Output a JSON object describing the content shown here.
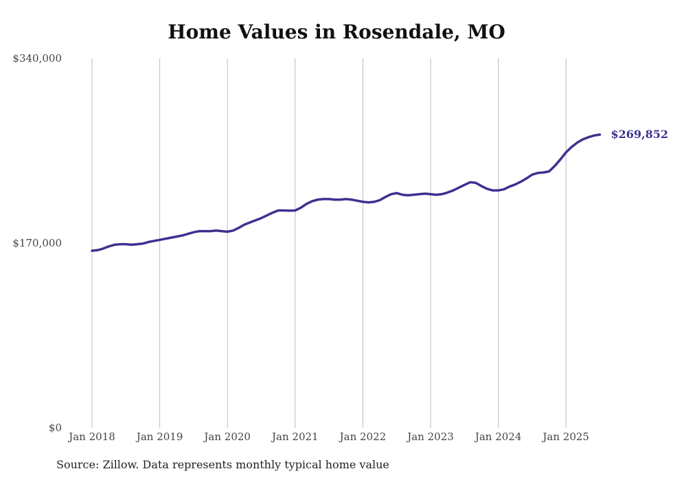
{
  "chart_data": {
    "type": "line",
    "title": "Home Values in Rosendale, MO",
    "source_note": "Source: Zillow. Data represents monthly typical home value",
    "ylim": [
      0,
      340000
    ],
    "y_ticks": [
      "$0",
      "$170,000",
      "$340,000"
    ],
    "y_tick_values": [
      0,
      170000,
      340000
    ],
    "x_ticks": [
      "Jan 2018",
      "Jan 2019",
      "Jan 2020",
      "Jan 2021",
      "Jan 2022",
      "Jan 2023",
      "Jan 2024",
      "Jan 2025"
    ],
    "grid": "vertical",
    "end_label": "$269,852",
    "line_color": "#3b3191",
    "series": [
      {
        "points": [
          [
            "2018-01",
            163000
          ],
          [
            "2018-02",
            163500
          ],
          [
            "2018-03",
            165000
          ],
          [
            "2018-04",
            167000
          ],
          [
            "2018-05",
            168500
          ],
          [
            "2018-06",
            169000
          ],
          [
            "2018-07",
            169000
          ],
          [
            "2018-08",
            168500
          ],
          [
            "2018-09",
            169000
          ],
          [
            "2018-10",
            169500
          ],
          [
            "2018-11",
            171000
          ],
          [
            "2018-12",
            172000
          ],
          [
            "2019-01",
            173000
          ],
          [
            "2019-02",
            174000
          ],
          [
            "2019-03",
            175000
          ],
          [
            "2019-04",
            176000
          ],
          [
            "2019-05",
            177000
          ],
          [
            "2019-06",
            178500
          ],
          [
            "2019-07",
            180000
          ],
          [
            "2019-08",
            181000
          ],
          [
            "2019-09",
            181000
          ],
          [
            "2019-10",
            181000
          ],
          [
            "2019-11",
            181500
          ],
          [
            "2019-12",
            181000
          ],
          [
            "2020-01",
            180500
          ],
          [
            "2020-02",
            181500
          ],
          [
            "2020-03",
            184000
          ],
          [
            "2020-04",
            187000
          ],
          [
            "2020-05",
            189000
          ],
          [
            "2020-06",
            191000
          ],
          [
            "2020-07",
            193000
          ],
          [
            "2020-08",
            195500
          ],
          [
            "2020-09",
            198000
          ],
          [
            "2020-10",
            200000
          ],
          [
            "2020-11",
            200000
          ],
          [
            "2020-12",
            199800
          ],
          [
            "2021-01",
            200000
          ],
          [
            "2021-02",
            202500
          ],
          [
            "2021-03",
            206000
          ],
          [
            "2021-04",
            208500
          ],
          [
            "2021-05",
            210000
          ],
          [
            "2021-06",
            210500
          ],
          [
            "2021-07",
            210500
          ],
          [
            "2021-08",
            210000
          ],
          [
            "2021-09",
            210000
          ],
          [
            "2021-10",
            210500
          ],
          [
            "2021-11",
            210000
          ],
          [
            "2021-12",
            209000
          ],
          [
            "2022-01",
            208000
          ],
          [
            "2022-02",
            207500
          ],
          [
            "2022-03",
            208000
          ],
          [
            "2022-04",
            209500
          ],
          [
            "2022-05",
            212500
          ],
          [
            "2022-06",
            215000
          ],
          [
            "2022-07",
            216000
          ],
          [
            "2022-08",
            214500
          ],
          [
            "2022-09",
            214000
          ],
          [
            "2022-10",
            214500
          ],
          [
            "2022-11",
            215000
          ],
          [
            "2022-12",
            215500
          ],
          [
            "2023-01",
            215000
          ],
          [
            "2023-02",
            214500
          ],
          [
            "2023-03",
            215000
          ],
          [
            "2023-04",
            216500
          ],
          [
            "2023-05",
            218500
          ],
          [
            "2023-06",
            221000
          ],
          [
            "2023-07",
            223500
          ],
          [
            "2023-08",
            226000
          ],
          [
            "2023-09",
            225500
          ],
          [
            "2023-10",
            222500
          ],
          [
            "2023-11",
            220000
          ],
          [
            "2023-12",
            218500
          ],
          [
            "2024-01",
            218500
          ],
          [
            "2024-02",
            219500
          ],
          [
            "2024-03",
            222000
          ],
          [
            "2024-04",
            224000
          ],
          [
            "2024-05",
            226500
          ],
          [
            "2024-06",
            229500
          ],
          [
            "2024-07",
            233000
          ],
          [
            "2024-08",
            234500
          ],
          [
            "2024-09",
            235000
          ],
          [
            "2024-10",
            236000
          ],
          [
            "2024-11",
            241000
          ],
          [
            "2024-12",
            247000
          ],
          [
            "2025-01",
            253500
          ],
          [
            "2025-02",
            258500
          ],
          [
            "2025-03",
            262500
          ],
          [
            "2025-04",
            265500
          ],
          [
            "2025-05",
            267500
          ],
          [
            "2025-06",
            269000
          ],
          [
            "2025-07",
            269852
          ]
        ]
      }
    ]
  }
}
